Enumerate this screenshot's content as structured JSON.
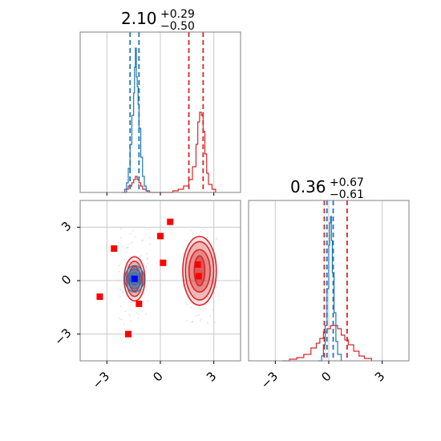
{
  "chart_data": {
    "type": "corner",
    "colors": {
      "blue": "#1f77b4",
      "red": "#d62728",
      "grid": "#c8c8c8",
      "frame": "#808080",
      "marker_red": "#ff0000",
      "marker_blue": "#0000ff"
    },
    "titles": [
      {
        "main": "2.10",
        "sup": "+0.29",
        "sub": "−0.50"
      },
      {
        "main": "0.36",
        "sup": "+0.67",
        "sub": "−0.61"
      }
    ],
    "xlim": [
      -4.5,
      4.5
    ],
    "ylim": [
      -4.5,
      4.5
    ],
    "ticks": [
      -3,
      0,
      3
    ],
    "tick_labels": [
      "−3",
      "0",
      "3"
    ],
    "grid": true,
    "hist_x": {
      "blue_series": [
        [
          -2.2,
          0
        ],
        [
          -2.0,
          0.02
        ],
        [
          -1.9,
          0.06
        ],
        [
          -1.8,
          0.15
        ],
        [
          -1.7,
          0.3
        ],
        [
          -1.6,
          0.48
        ],
        [
          -1.5,
          0.62
        ],
        [
          -1.45,
          0.78
        ],
        [
          -1.4,
          0.9
        ],
        [
          -1.35,
          0.72
        ],
        [
          -1.3,
          0.66
        ],
        [
          -1.25,
          0.55
        ],
        [
          -1.2,
          0.4
        ],
        [
          -1.1,
          0.22
        ],
        [
          -1.0,
          0.1
        ],
        [
          -0.9,
          0.04
        ],
        [
          -0.8,
          0.01
        ],
        [
          -0.7,
          0
        ]
      ],
      "red_series": [
        [
          -2.0,
          0
        ],
        [
          -1.9,
          0.02
        ],
        [
          -1.8,
          0.04
        ],
        [
          -1.6,
          0.06
        ],
        [
          -1.5,
          0.08
        ],
        [
          -1.4,
          0.1
        ],
        [
          -1.3,
          0.08
        ],
        [
          -1.2,
          0.06
        ],
        [
          -1.1,
          0.04
        ],
        [
          -1.0,
          0.02
        ],
        [
          -0.8,
          0.01
        ],
        [
          -0.6,
          0
        ],
        [
          0.7,
          0.01
        ],
        [
          1.0,
          0.02
        ],
        [
          1.3,
          0.04
        ],
        [
          1.6,
          0.08
        ],
        [
          1.8,
          0.16
        ],
        [
          2.0,
          0.3
        ],
        [
          2.1,
          0.44
        ],
        [
          2.2,
          0.5
        ],
        [
          2.3,
          0.48
        ],
        [
          2.4,
          0.38
        ],
        [
          2.5,
          0.24
        ],
        [
          2.6,
          0.12
        ],
        [
          2.7,
          0.05
        ],
        [
          2.9,
          0.02
        ],
        [
          3.1,
          0
        ]
      ],
      "blue_quantiles": [
        -1.7,
        -1.2
      ],
      "red_quantiles": [
        1.6,
        2.4
      ]
    },
    "hist_y": {
      "blue_series": [
        [
          -0.6,
          0
        ],
        [
          -0.4,
          0.03
        ],
        [
          -0.3,
          0.1
        ],
        [
          -0.2,
          0.22
        ],
        [
          -0.1,
          0.45
        ],
        [
          0,
          0.72
        ],
        [
          0.05,
          0.86
        ],
        [
          0.1,
          0.9
        ],
        [
          0.15,
          0.75
        ],
        [
          0.2,
          0.55
        ],
        [
          0.3,
          0.3
        ],
        [
          0.4,
          0.12
        ],
        [
          0.5,
          0.04
        ],
        [
          0.7,
          0
        ]
      ],
      "red_series": [
        [
          -2.6,
          0
        ],
        [
          -2.2,
          0.01
        ],
        [
          -1.8,
          0.02
        ],
        [
          -1.4,
          0.04
        ],
        [
          -1.0,
          0.08
        ],
        [
          -0.7,
          0.11
        ],
        [
          -0.5,
          0.14
        ],
        [
          -0.3,
          0.18
        ],
        [
          -0.1,
          0.2
        ],
        [
          0.1,
          0.22
        ],
        [
          0.3,
          0.22
        ],
        [
          0.5,
          0.2
        ],
        [
          0.7,
          0.16
        ],
        [
          0.9,
          0.13
        ],
        [
          1.1,
          0.1
        ],
        [
          1.4,
          0.06
        ],
        [
          1.7,
          0.03
        ],
        [
          2.0,
          0.015
        ],
        [
          2.4,
          0
        ]
      ],
      "blue_quantiles": [
        -0.1,
        0.25
      ],
      "red_quantiles": [
        -0.25,
        1.03
      ]
    },
    "joint": {
      "red_markers": [
        [
          -3.4,
          -0.9
        ],
        [
          -2.6,
          1.8
        ],
        [
          -1.8,
          -3.0
        ],
        [
          -1.2,
          -1.3
        ],
        [
          0.0,
          2.5
        ],
        [
          0.15,
          1.0
        ],
        [
          0.55,
          3.3
        ],
        [
          2.1,
          0.9
        ],
        [
          2.15,
          0.25
        ]
      ],
      "blue_marker": [
        -1.45,
        0.1
      ],
      "red_density_center_a": [
        -1.45,
        0.1
      ],
      "red_density_center_b": [
        2.2,
        0.55
      ],
      "blue_density_center": [
        -1.45,
        0.1
      ]
    }
  }
}
